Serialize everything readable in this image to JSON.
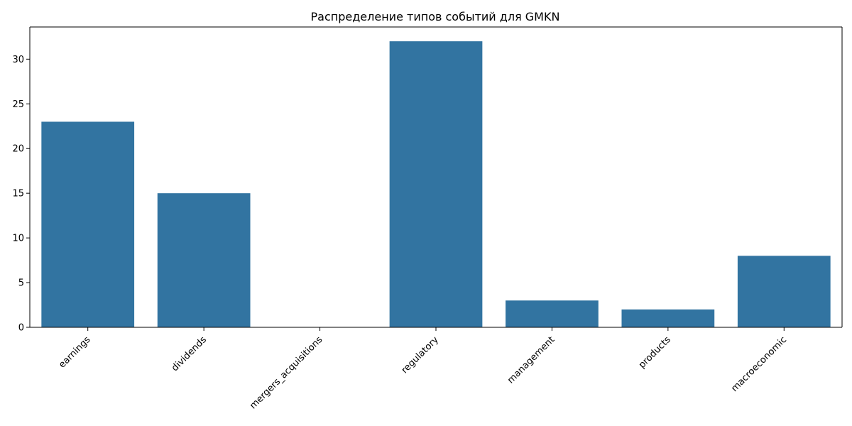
{
  "chart_data": {
    "type": "bar",
    "title": "Распределение типов событий для GMKN",
    "xlabel": "",
    "ylabel": "",
    "categories": [
      "earnings",
      "dividends",
      "mergers_acquisitions",
      "regulatory",
      "management",
      "products",
      "macroeconomic"
    ],
    "values": [
      23,
      15,
      0,
      32,
      3,
      2,
      8
    ],
    "ylim": [
      0,
      33.6
    ],
    "yticks": [
      0,
      5,
      10,
      15,
      20,
      25,
      30
    ],
    "ytick_labels": [
      "0",
      "5",
      "10",
      "15",
      "20",
      "25",
      "30"
    ],
    "grid": false,
    "legend": "none",
    "bar_color": "#3274a1"
  }
}
